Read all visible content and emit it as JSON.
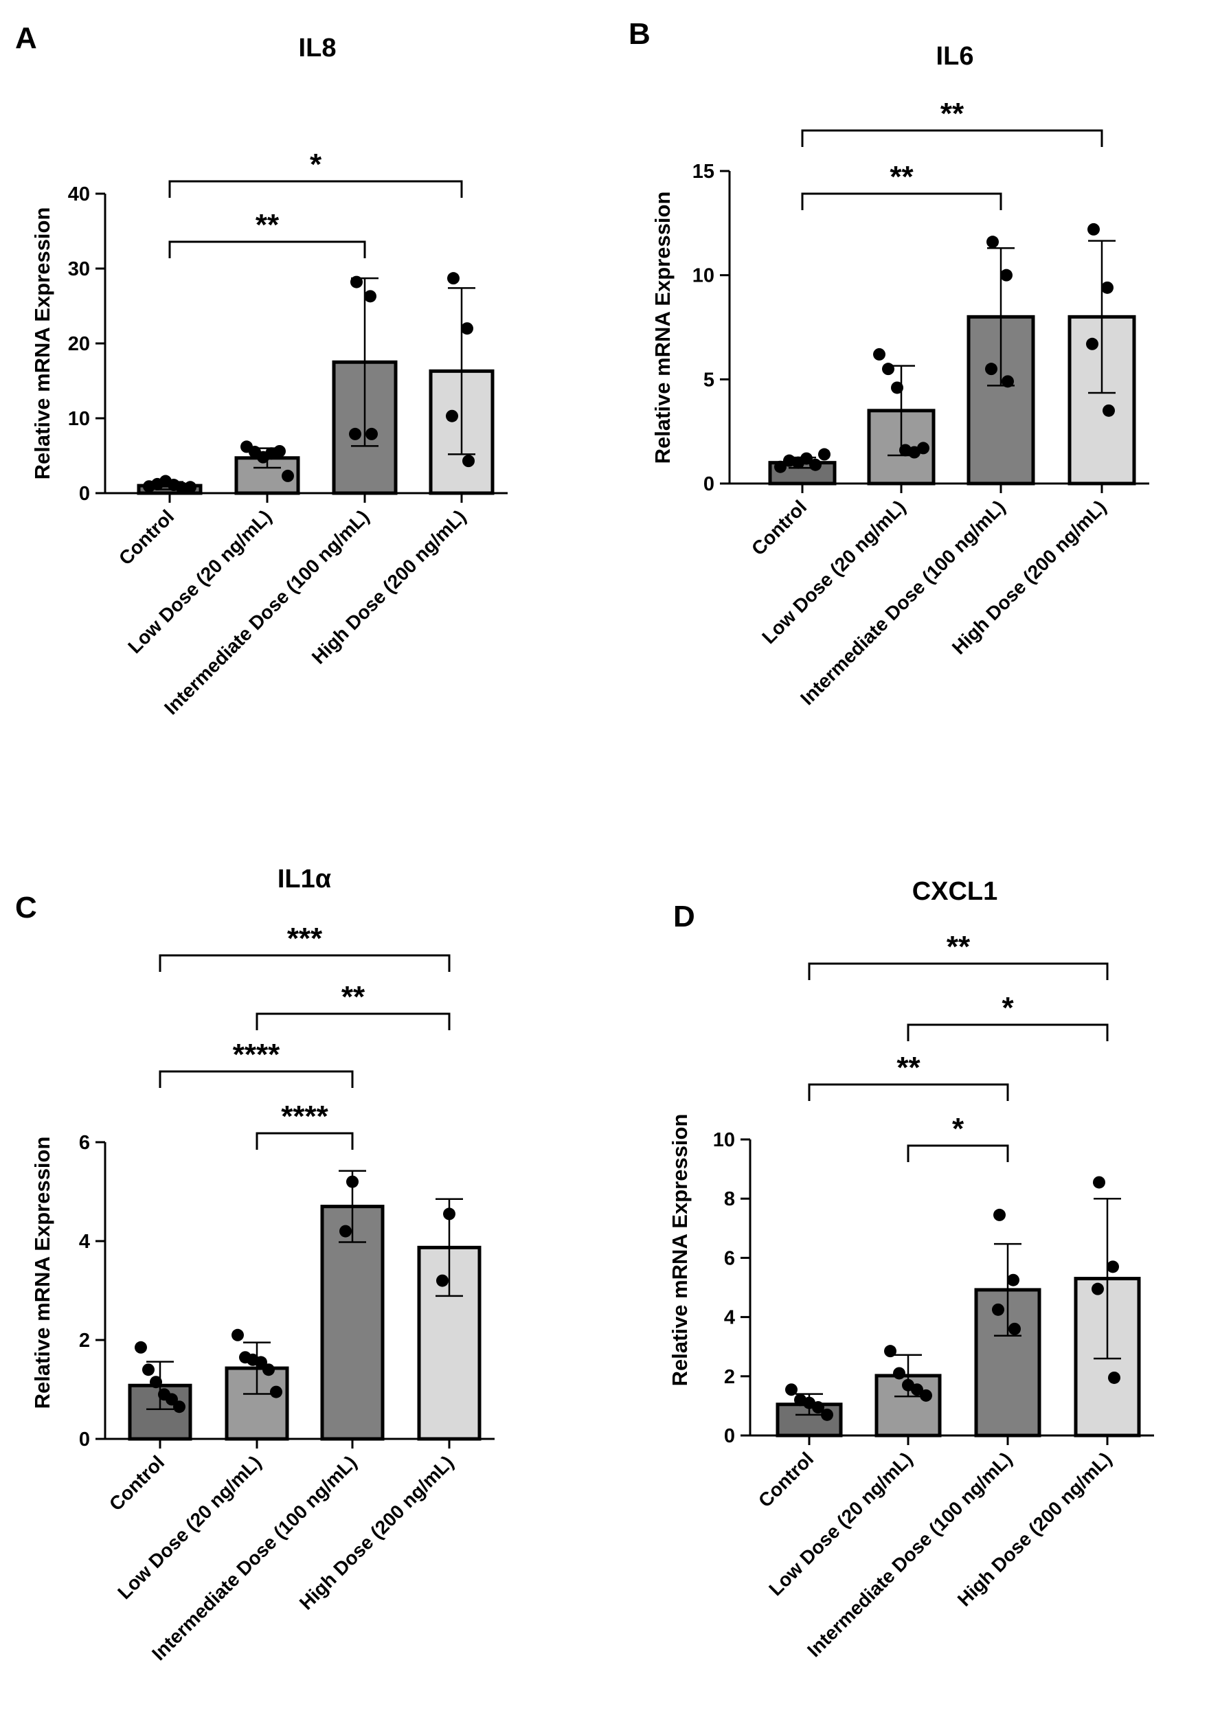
{
  "chart_data": [
    {
      "panel": "A",
      "type": "bar",
      "title": "IL8",
      "ylabel": "Relative mRNA Expression",
      "ylim": [
        0,
        40
      ],
      "yticks": [
        0,
        10,
        20,
        30,
        40
      ],
      "categories": [
        "Control",
        "Low Dose (20 ng/mL)",
        "Intermediate Dose (100 ng/mL)",
        "High Dose (200 ng/mL)"
      ],
      "values": [
        1.0,
        4.7,
        17.5,
        16.3
      ],
      "errors": [
        0.5,
        1.3,
        11.2,
        11.1
      ],
      "points": [
        [
          0.9,
          1.2,
          1.6,
          1.1,
          0.7,
          0.8
        ],
        [
          6.2,
          5.5,
          4.8,
          5.3,
          5.6,
          2.3
        ],
        [
          28.2,
          26.3,
          7.9,
          7.9
        ],
        [
          28.7,
          22.0,
          10.3,
          4.3
        ]
      ],
      "colors": [
        "#6f6f6f",
        "#9b9b9b",
        "#808080",
        "#d9d9d9"
      ],
      "significance": [
        {
          "from": 0,
          "to": 2,
          "label": "**"
        },
        {
          "from": 0,
          "to": 3,
          "label": "*"
        }
      ]
    },
    {
      "panel": "B",
      "type": "bar",
      "title": "IL6",
      "ylabel": "Relative mRNA Expression",
      "ylim": [
        0,
        15
      ],
      "yticks": [
        0,
        5,
        10,
        15
      ],
      "categories": [
        "Control",
        "Low Dose (20 ng/mL)",
        "Intermediate Dose (100 ng/mL)",
        "High Dose (200 ng/mL)"
      ],
      "values": [
        1.0,
        3.5,
        8.0,
        8.0
      ],
      "errors": [
        0.25,
        2.15,
        3.3,
        3.65
      ],
      "points": [
        [
          0.8,
          1.1,
          1.0,
          1.2,
          0.9,
          1.4
        ],
        [
          6.2,
          5.5,
          4.6,
          1.6,
          1.5,
          1.7
        ],
        [
          11.6,
          10.0,
          5.5,
          4.9
        ],
        [
          12.2,
          9.4,
          6.7,
          3.5
        ]
      ],
      "colors": [
        "#6f6f6f",
        "#9b9b9b",
        "#808080",
        "#d9d9d9"
      ],
      "significance": [
        {
          "from": 0,
          "to": 2,
          "label": "**"
        },
        {
          "from": 0,
          "to": 3,
          "label": "**"
        }
      ]
    },
    {
      "panel": "C",
      "type": "bar",
      "title": "IL1α",
      "ylabel": "Relative mRNA Expression",
      "ylim": [
        0,
        6
      ],
      "yticks": [
        0,
        2,
        4,
        6
      ],
      "categories": [
        "Control",
        "Low Dose (20 ng/mL)",
        "Intermediate Dose (100 ng/mL)",
        "High Dose (200 ng/mL)"
      ],
      "values": [
        1.08,
        1.43,
        4.7,
        3.87
      ],
      "errors": [
        0.48,
        0.52,
        0.72,
        0.98
      ],
      "points": [
        [
          1.85,
          1.4,
          1.15,
          0.9,
          0.8,
          0.65
        ],
        [
          2.1,
          1.65,
          1.6,
          1.55,
          1.4,
          0.95
        ],
        [
          5.2,
          4.2
        ],
        [
          4.55,
          3.2
        ]
      ],
      "colors": [
        "#6f6f6f",
        "#9b9b9b",
        "#808080",
        "#d9d9d9"
      ],
      "significance": [
        {
          "from": 1,
          "to": 2,
          "label": "****"
        },
        {
          "from": 0,
          "to": 2,
          "label": "****"
        },
        {
          "from": 1,
          "to": 3,
          "label": "**"
        },
        {
          "from": 0,
          "to": 3,
          "label": "***"
        }
      ]
    },
    {
      "panel": "D",
      "type": "bar",
      "title": "CXCL1",
      "ylabel": "Relative mRNA Expression",
      "ylim": [
        0,
        10
      ],
      "yticks": [
        0,
        2,
        4,
        6,
        8,
        10
      ],
      "categories": [
        "Control",
        "Low Dose (20 ng/mL)",
        "Intermediate Dose (100 ng/mL)",
        "High Dose (200 ng/mL)"
      ],
      "values": [
        1.05,
        2.02,
        4.92,
        5.3
      ],
      "errors": [
        0.35,
        0.7,
        1.55,
        2.7
      ],
      "points": [
        [
          1.55,
          1.2,
          1.1,
          0.95,
          0.7
        ],
        [
          2.85,
          2.1,
          1.7,
          1.55,
          1.35
        ],
        [
          7.45,
          5.25,
          4.25,
          3.6
        ],
        [
          8.55,
          5.7,
          4.95,
          1.95
        ]
      ],
      "colors": [
        "#6f6f6f",
        "#9b9b9b",
        "#808080",
        "#d9d9d9"
      ],
      "significance": [
        {
          "from": 1,
          "to": 2,
          "label": "*"
        },
        {
          "from": 0,
          "to": 2,
          "label": "**"
        },
        {
          "from": 1,
          "to": 3,
          "label": "*"
        },
        {
          "from": 0,
          "to": 3,
          "label": "**"
        }
      ]
    }
  ]
}
